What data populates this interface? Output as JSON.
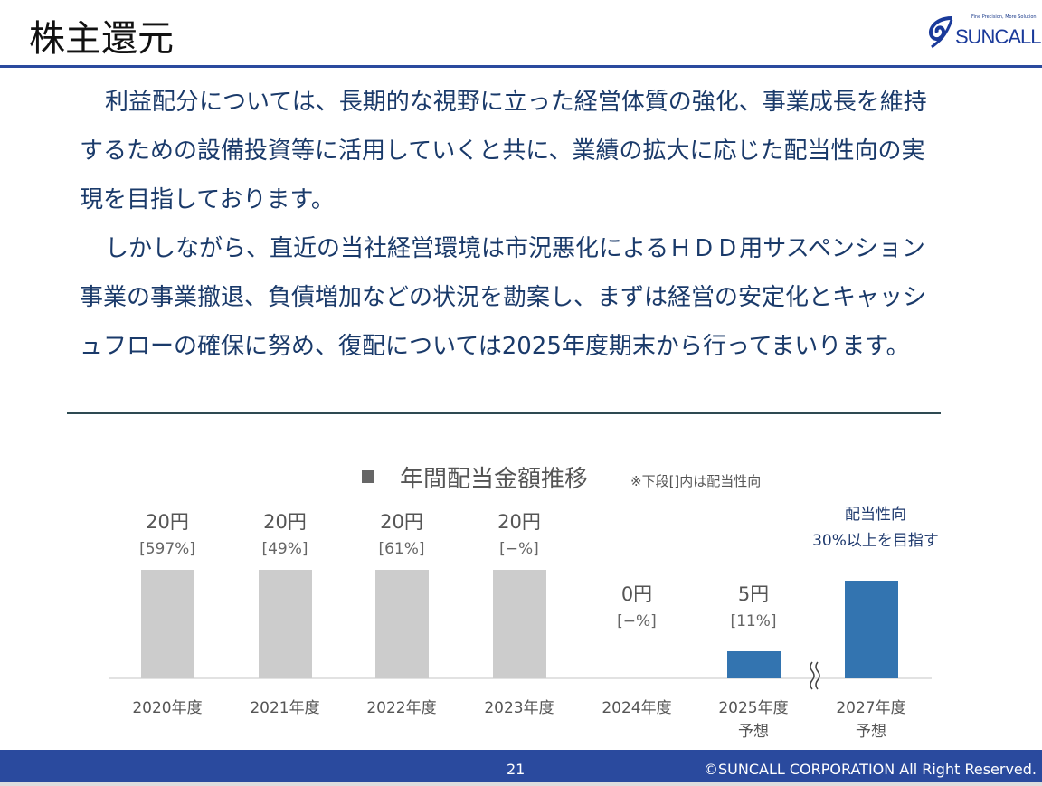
{
  "header": {
    "title": "株主還元",
    "logo_text": "SUNCALL",
    "logo_tagline": "Fine Precision, More Solution"
  },
  "body": {
    "paragraphs": [
      "利益配分については、長期的な視野に立った経営体質の強化、事業成長を維持するための設備投資等に活用していくと共に、業績の拡大に応じた配当性向の実現を目指しております。",
      "しかしながら、直近の当社経営環境は市況悪化によるＨＤＤ用サスペンション事業の事業撤退、負債増加などの状況を勘案し、まずは経営の安定化とキャッシュフローの確保に努め、復配については2025年度期末から行ってまいります。"
    ]
  },
  "chart_data": {
    "type": "bar",
    "title": "年間配当金額推移",
    "subtitle": "※下段[]内は配当性向",
    "categories": [
      [
        "2020年度"
      ],
      [
        "2021年度"
      ],
      [
        "2022年度"
      ],
      [
        "2023年度"
      ],
      [
        "2024年度"
      ],
      [
        "2025年度",
        "予想"
      ],
      [
        "2027年度",
        "予想"
      ]
    ],
    "values": [
      20,
      20,
      20,
      20,
      0,
      5,
      18
    ],
    "value_labels": [
      "20円",
      "20円",
      "20円",
      "20円",
      "0円",
      "5円",
      ""
    ],
    "ratio_labels": [
      "[597%]",
      "[49%]",
      "[61%]",
      "[−%]",
      "[−%]",
      "[11%]",
      ""
    ],
    "annotation": [
      "配当性向",
      "30%以上を目指す"
    ],
    "axis_break_between": [
      "2025年度",
      "2027年度"
    ],
    "colors": {
      "actual": "#cccccc",
      "forecast": "#3374b0",
      "annotation": "#1f3a6e"
    },
    "grid": false
  },
  "footer": {
    "page": "21",
    "copyright": "©SUNCALL CORPORATION All Right Reserved."
  }
}
